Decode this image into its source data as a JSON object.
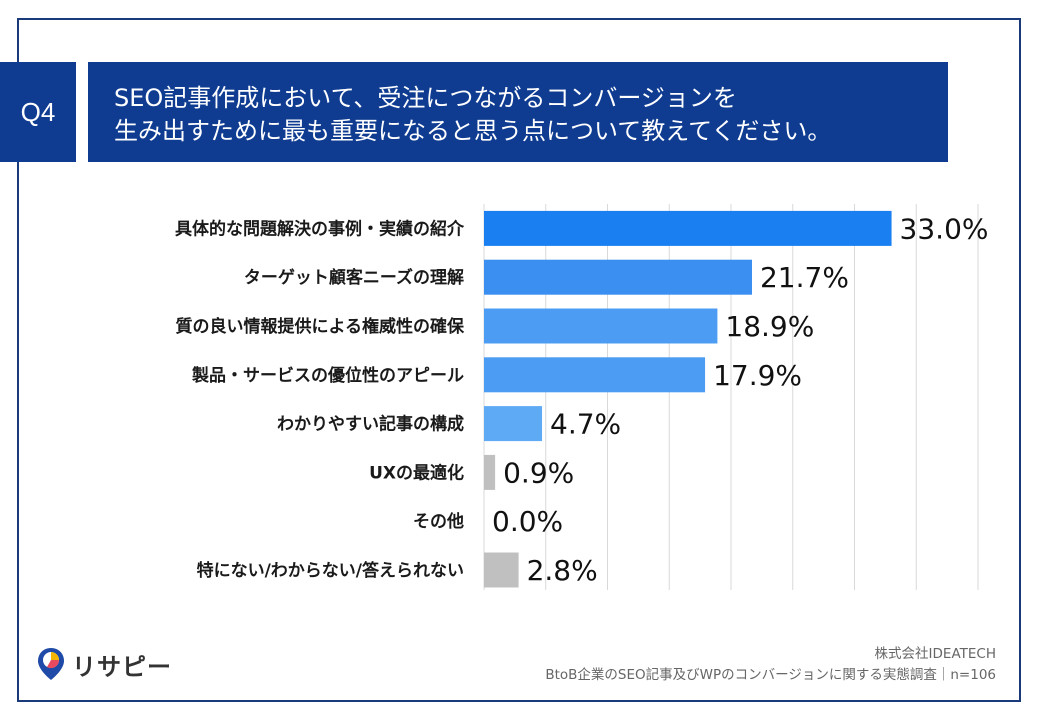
{
  "question": {
    "number": "Q4",
    "title_line1": "SEO記事作成において、受注につながるコンバージョンを",
    "title_line2": "生み出すために最も重要になると思う点について教えてください。"
  },
  "chart_data": {
    "type": "bar",
    "orientation": "horizontal",
    "xlim": [
      0,
      40
    ],
    "grid": true,
    "categories": [
      "具体的な問題解決の事例・実績の紹介",
      "ターゲット顧客ニーズの理解",
      "質の良い情報提供による権威性の確保",
      "製品・サービスの優位性のアピール",
      "わかりやすい記事の構成",
      "UXの最適化",
      "その他",
      "特にない/わからない/答えられない"
    ],
    "values": [
      33.0,
      21.7,
      18.9,
      17.9,
      4.7,
      0.9,
      0.0,
      2.8
    ],
    "value_labels": [
      "33.0%",
      "21.7%",
      "18.9%",
      "17.9%",
      "4.7%",
      "0.9%",
      "0.0%",
      "2.8%"
    ],
    "colors": [
      "#1a7ff0",
      "#3b8ff0",
      "#4c9cf3",
      "#4c9cf3",
      "#5eaaf5",
      "#c0c0c0",
      "#c0c0c0",
      "#c0c0c0"
    ]
  },
  "footer": {
    "company": "株式会社IDEATECH",
    "survey": "BtoB企業のSEO記事及びWPのコンバージョンに関する実態調査｜n=106"
  },
  "logo": {
    "text": "リサピー",
    "icon": "location-pin-chart-icon"
  }
}
